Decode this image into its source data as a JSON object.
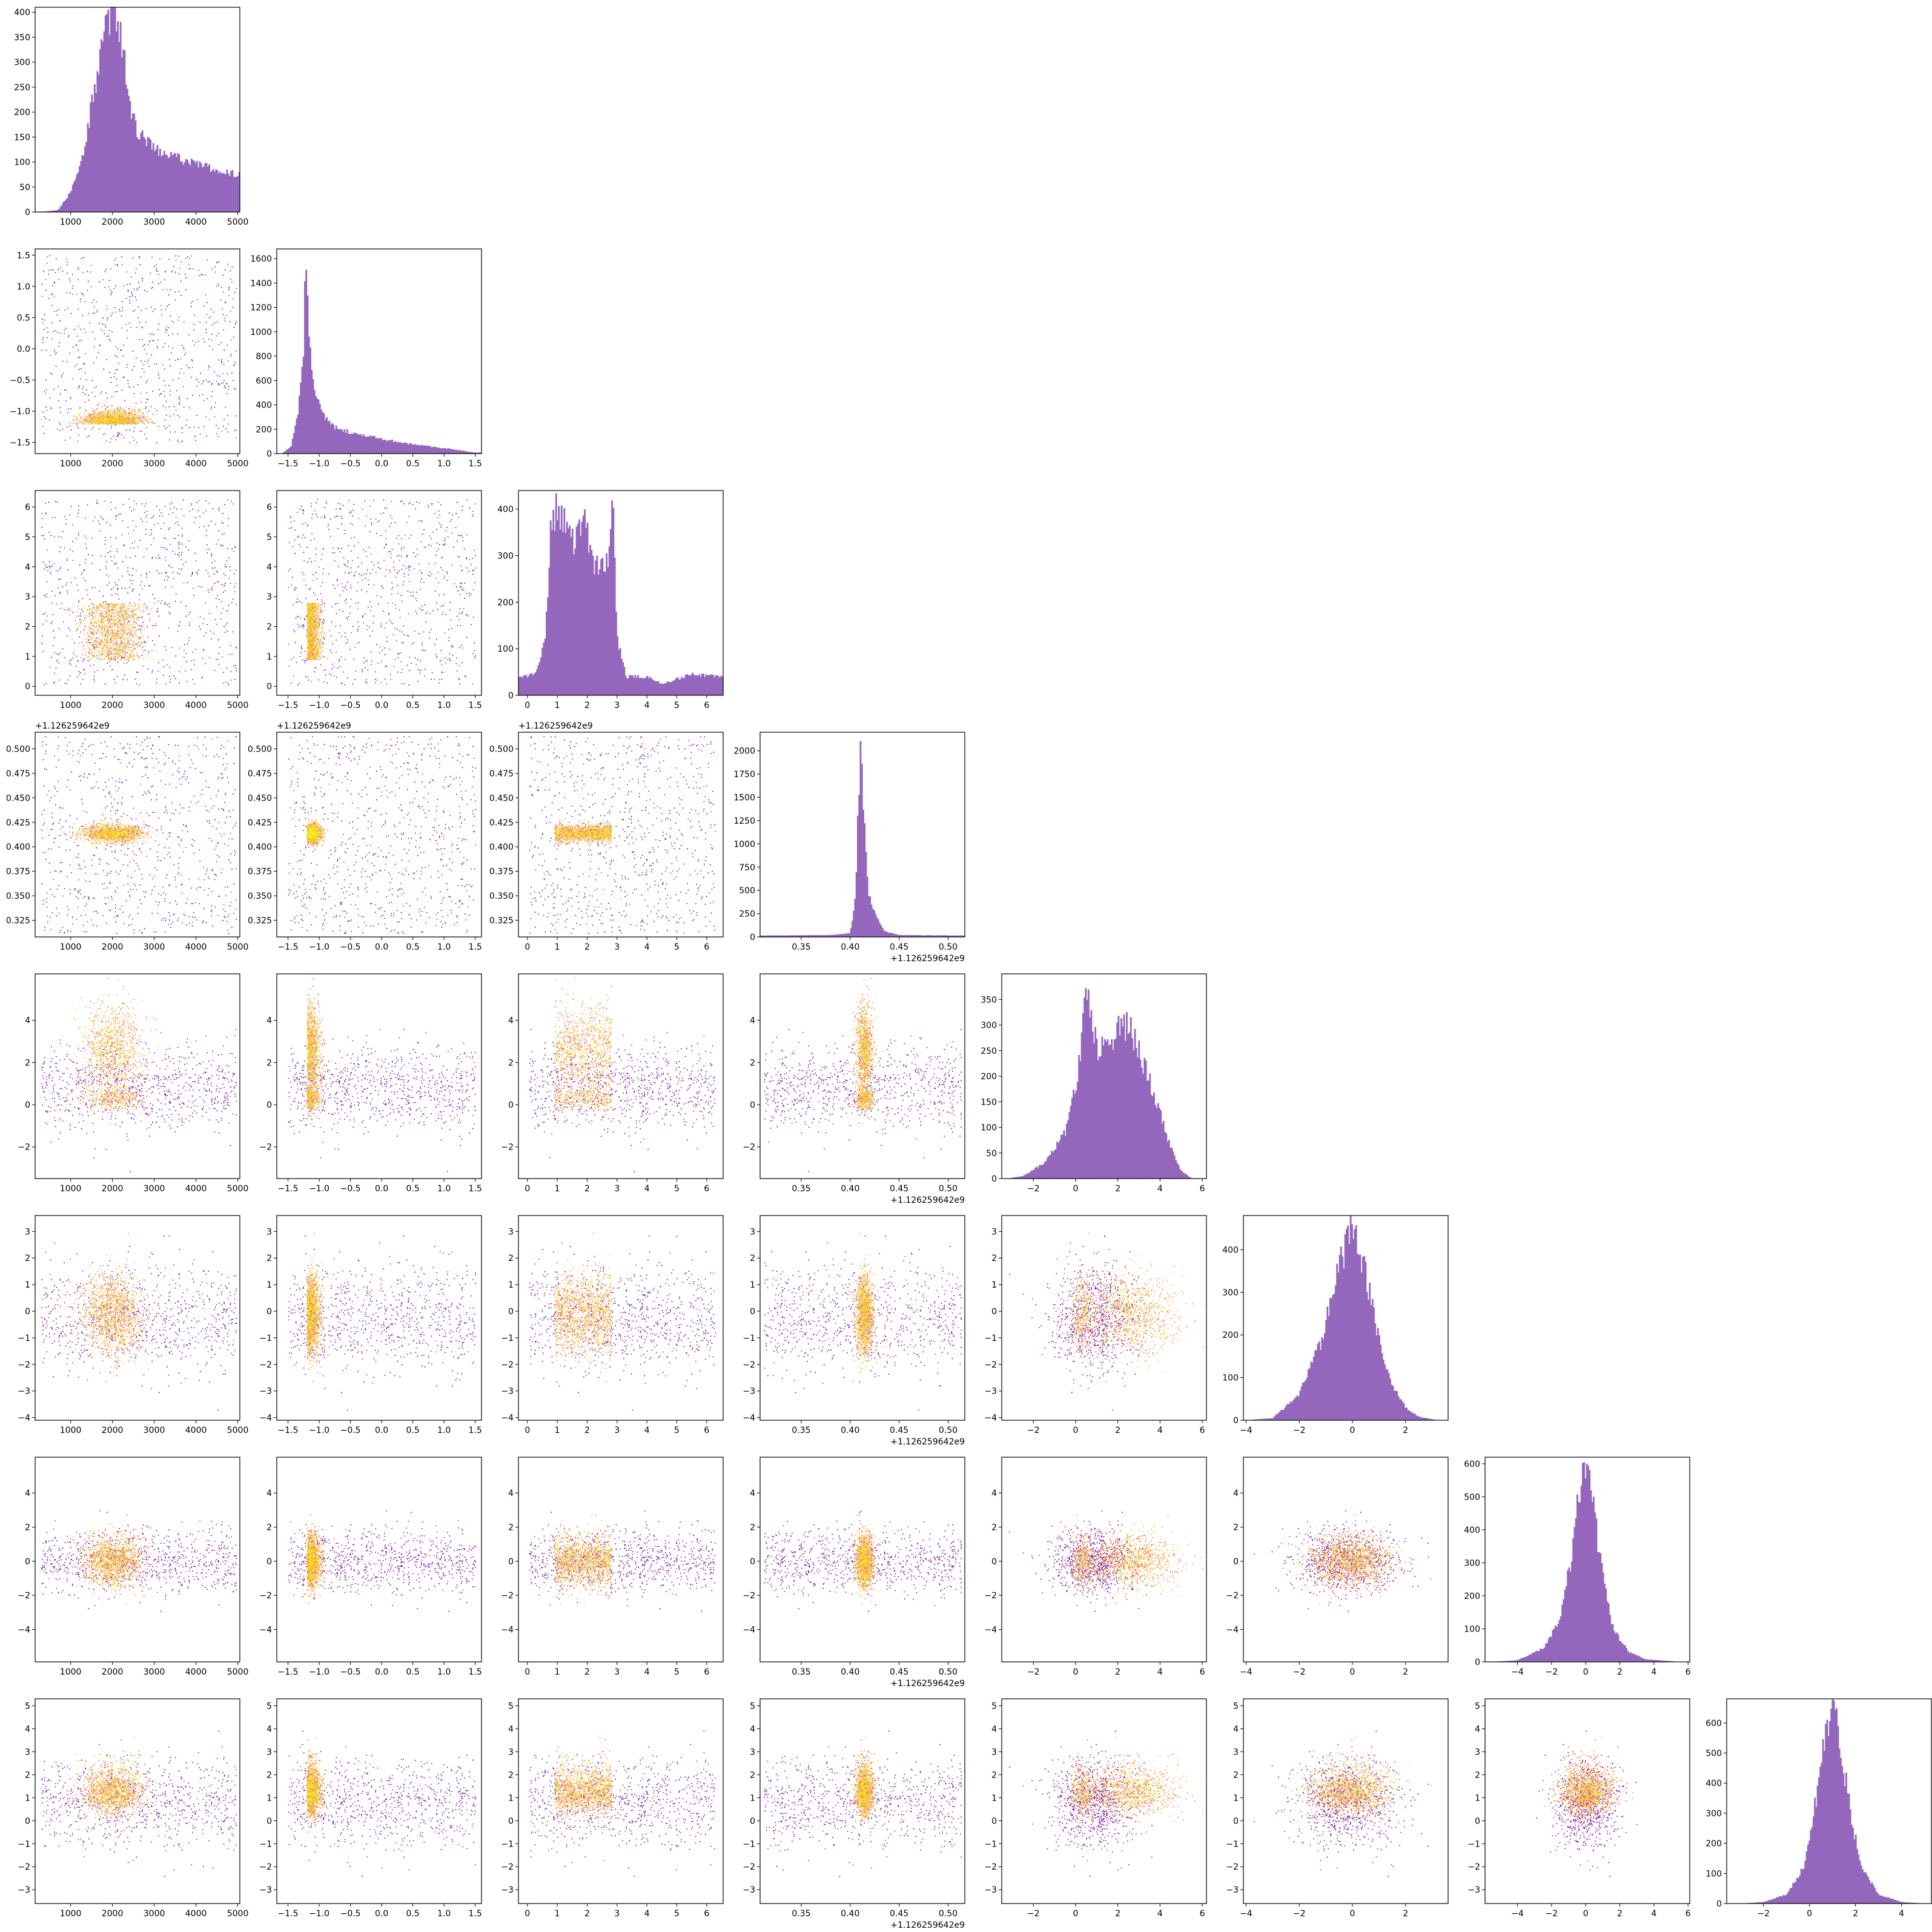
{
  "chart_data": {
    "type": "corner",
    "n_params": 8,
    "hist_color": "#9467bd",
    "colormap": "plasma",
    "grid": false,
    "params": [
      {
        "range": [
          150,
          5050
        ],
        "ticks": [
          1000,
          2000,
          3000,
          4000,
          5000
        ],
        "tick_labels": [
          "1000",
          "2000",
          "3000",
          "4000",
          "5000"
        ],
        "offset_text": ""
      },
      {
        "range": [
          -1.68,
          1.6
        ],
        "ticks": [
          -1.5,
          -1.0,
          -0.5,
          0.0,
          0.5,
          1.0,
          1.5
        ],
        "tick_labels": [
          "−1.5",
          "−1.0",
          "−0.5",
          "0.0",
          "0.5",
          "1.0",
          "1.5"
        ],
        "offset_text": ""
      },
      {
        "range": [
          -0.3,
          6.55
        ],
        "ticks": [
          0,
          1,
          2,
          3,
          4,
          5,
          6
        ],
        "tick_labels": [
          "0",
          "1",
          "2",
          "3",
          "4",
          "5",
          "6"
        ],
        "offset_text": ""
      },
      {
        "range": [
          0.308,
          0.517
        ],
        "ticks": [
          0.325,
          0.35,
          0.375,
          0.4,
          0.425,
          0.45,
          0.475,
          0.5
        ],
        "tick_labels": [
          "0.325",
          "0.350",
          "0.375",
          "0.400",
          "0.425",
          "0.450",
          "0.475",
          "0.500"
        ],
        "xticks": [
          0.35,
          0.4,
          0.45,
          0.5
        ],
        "xtick_labels": [
          "0.35",
          "0.40",
          "0.45",
          "0.50"
        ],
        "offset_text": "+1.126259642e9"
      },
      {
        "range": [
          -3.5,
          6.2
        ],
        "ticks": [
          -2,
          0,
          2,
          4,
          6
        ],
        "tick_labels": [
          "−2",
          "0",
          "2",
          "4",
          "6"
        ],
        "yticks": [
          -2,
          0,
          2,
          4
        ],
        "ytick_labels": [
          "−2",
          "0",
          "2",
          "4"
        ],
        "offset_text": ""
      },
      {
        "range": [
          -4.1,
          3.6
        ],
        "ticks": [
          -4,
          -3,
          -2,
          -1,
          0,
          1,
          2,
          3
        ],
        "tick_labels": [
          "−4",
          "−3",
          "−2",
          "−1",
          "0",
          "1",
          "2",
          "3"
        ],
        "xticks": [
          -4,
          -2,
          0,
          2
        ],
        "xtick_labels": [
          "−4",
          "−2",
          "0",
          "2"
        ],
        "offset_text": ""
      },
      {
        "range": [
          -5.9,
          6.1
        ],
        "ticks": [
          -4,
          -2,
          0,
          2,
          4,
          6
        ],
        "tick_labels": [
          "−4",
          "−2",
          "0",
          "2",
          "4",
          "6"
        ],
        "yticks": [
          -4,
          -2,
          0,
          2,
          4
        ],
        "ytick_labels": [
          "−4",
          "−2",
          "0",
          "2",
          "4"
        ],
        "offset_text": ""
      },
      {
        "range": [
          -3.6,
          5.3
        ],
        "ticks": [
          -3,
          -2,
          -1,
          0,
          1,
          2,
          3,
          4,
          5
        ],
        "tick_labels": [
          "−3",
          "−2",
          "−1",
          "0",
          "1",
          "2",
          "3",
          "4",
          "5"
        ],
        "xticks": [
          -2,
          0,
          2,
          4
        ],
        "xtick_labels": [
          "−2",
          "0",
          "2",
          "4"
        ],
        "offset_text": ""
      }
    ],
    "histograms": [
      {
        "ylim": [
          0,
          410
        ],
        "yticks": [
          0,
          50,
          100,
          150,
          200,
          250,
          300,
          350,
          400
        ],
        "ytick_labels": [
          "0",
          "50",
          "100",
          "150",
          "200",
          "250",
          "300",
          "350",
          "400"
        ],
        "profile": [
          [
            300,
            0
          ],
          [
            700,
            4
          ],
          [
            1000,
            40
          ],
          [
            1300,
            120
          ],
          [
            1600,
            260
          ],
          [
            1850,
            370
          ],
          [
            2000,
            395
          ],
          [
            2200,
            360
          ],
          [
            2400,
            220
          ],
          [
            2600,
            160
          ],
          [
            3000,
            125
          ],
          [
            3500,
            110
          ],
          [
            4000,
            95
          ],
          [
            4500,
            85
          ],
          [
            5000,
            75
          ]
        ]
      },
      {
        "ylim": [
          0,
          1680
        ],
        "yticks": [
          0,
          200,
          400,
          600,
          800,
          1000,
          1200,
          1400,
          1600
        ],
        "ytick_labels": [
          "0",
          "200",
          "400",
          "600",
          "800",
          "1000",
          "1200",
          "1400",
          "1600"
        ],
        "profile": [
          [
            -1.6,
            0
          ],
          [
            -1.45,
            60
          ],
          [
            -1.35,
            300
          ],
          [
            -1.25,
            900
          ],
          [
            -1.22,
            1600
          ],
          [
            -1.18,
            1100
          ],
          [
            -1.1,
            620
          ],
          [
            -1.0,
            380
          ],
          [
            -0.8,
            230
          ],
          [
            -0.5,
            170
          ],
          [
            0,
            120
          ],
          [
            0.5,
            75
          ],
          [
            1.0,
            45
          ],
          [
            1.5,
            8
          ]
        ]
      },
      {
        "ylim": [
          0,
          440
        ],
        "yticks": [
          0,
          100,
          200,
          300,
          400
        ],
        "ytick_labels": [
          "0",
          "100",
          "200",
          "300",
          "400"
        ],
        "profile": [
          [
            0,
            40
          ],
          [
            0.3,
            50
          ],
          [
            0.6,
            120
          ],
          [
            0.8,
            380
          ],
          [
            1.0,
            400
          ],
          [
            1.3,
            360
          ],
          [
            1.6,
            330
          ],
          [
            1.9,
            390
          ],
          [
            2.1,
            300
          ],
          [
            2.4,
            270
          ],
          [
            2.7,
            280
          ],
          [
            2.85,
            430
          ],
          [
            3.0,
            120
          ],
          [
            3.3,
            40
          ],
          [
            4.0,
            40
          ],
          [
            4.5,
            25
          ],
          [
            5.0,
            35
          ],
          [
            5.5,
            45
          ],
          [
            6.0,
            42
          ],
          [
            6.28,
            40
          ]
        ]
      },
      {
        "ylim": [
          0,
          2200
        ],
        "yticks": [
          0,
          250,
          500,
          750,
          1000,
          1250,
          1500,
          1750,
          2000
        ],
        "ytick_labels": [
          "0",
          "250",
          "500",
          "750",
          "1000",
          "1250",
          "1500",
          "1750",
          "2000"
        ],
        "profile": [
          [
            0.31,
            15
          ],
          [
            0.38,
            20
          ],
          [
            0.4,
            40
          ],
          [
            0.405,
            400
          ],
          [
            0.408,
            1300
          ],
          [
            0.411,
            2100
          ],
          [
            0.414,
            1300
          ],
          [
            0.418,
            500
          ],
          [
            0.425,
            250
          ],
          [
            0.435,
            60
          ],
          [
            0.45,
            20
          ],
          [
            0.515,
            15
          ]
        ]
      },
      {
        "ylim": [
          0,
          400
        ],
        "yticks": [
          0,
          50,
          100,
          150,
          200,
          250,
          300,
          350
        ],
        "ytick_labels": [
          "0",
          "50",
          "100",
          "150",
          "200",
          "250",
          "300",
          "350"
        ],
        "profile": [
          [
            -3.2,
            0
          ],
          [
            -2.5,
            5
          ],
          [
            -1.5,
            30
          ],
          [
            -0.5,
            90
          ],
          [
            0,
            180
          ],
          [
            0.3,
            280
          ],
          [
            0.5,
            380
          ],
          [
            0.8,
            300
          ],
          [
            1.1,
            250
          ],
          [
            1.5,
            260
          ],
          [
            2.0,
            290
          ],
          [
            2.5,
            300
          ],
          [
            3.0,
            250
          ],
          [
            3.5,
            190
          ],
          [
            4.0,
            130
          ],
          [
            4.5,
            60
          ],
          [
            5.0,
            15
          ],
          [
            5.5,
            0
          ]
        ]
      },
      {
        "ylim": [
          0,
          480
        ],
        "yticks": [
          0,
          100,
          200,
          300,
          400
        ],
        "ytick_labels": [
          "0",
          "100",
          "200",
          "300",
          "400"
        ],
        "profile": [
          [
            -4,
            0
          ],
          [
            -3,
            5
          ],
          [
            -2,
            60
          ],
          [
            -1.2,
            180
          ],
          [
            -0.5,
            360
          ],
          [
            0,
            460
          ],
          [
            0.5,
            340
          ],
          [
            1,
            190
          ],
          [
            1.5,
            80
          ],
          [
            2,
            30
          ],
          [
            2.5,
            8
          ],
          [
            3.2,
            0
          ]
        ]
      },
      {
        "ylim": [
          0,
          620
        ],
        "yticks": [
          0,
          100,
          200,
          300,
          400,
          500,
          600
        ],
        "ytick_labels": [
          "0",
          "100",
          "200",
          "300",
          "400",
          "500",
          "600"
        ],
        "profile": [
          [
            -5.5,
            0
          ],
          [
            -4,
            5
          ],
          [
            -2.5,
            40
          ],
          [
            -1.5,
            130
          ],
          [
            -0.8,
            330
          ],
          [
            -0.3,
            550
          ],
          [
            0,
            600
          ],
          [
            0.4,
            480
          ],
          [
            1,
            260
          ],
          [
            1.6,
            100
          ],
          [
            2.5,
            30
          ],
          [
            3.5,
            8
          ],
          [
            5.5,
            0
          ]
        ]
      },
      {
        "ylim": [
          0,
          680
        ],
        "yticks": [
          0,
          100,
          200,
          300,
          400,
          500,
          600
        ],
        "ytick_labels": [
          "0",
          "100",
          "200",
          "300",
          "400",
          "500",
          "600"
        ],
        "profile": [
          [
            -3,
            0
          ],
          [
            -2,
            5
          ],
          [
            -1,
            30
          ],
          [
            -0.2,
            130
          ],
          [
            0.3,
            360
          ],
          [
            0.7,
            560
          ],
          [
            1.0,
            650
          ],
          [
            1.3,
            560
          ],
          [
            1.7,
            340
          ],
          [
            2.2,
            130
          ],
          [
            3.0,
            30
          ],
          [
            4.0,
            5
          ],
          [
            5.0,
            0
          ]
        ]
      }
    ]
  }
}
